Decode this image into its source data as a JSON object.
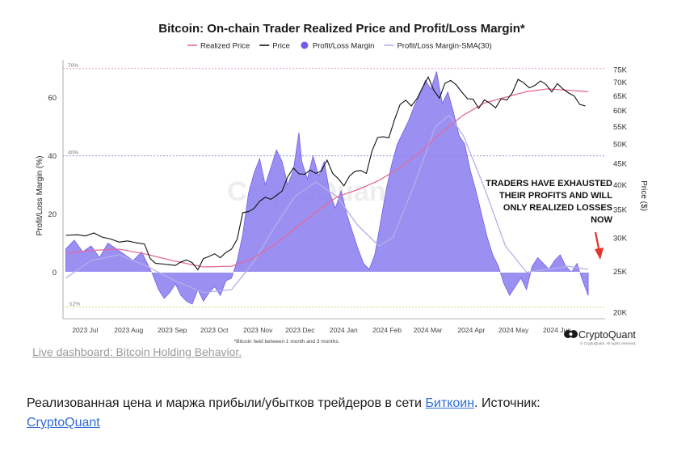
{
  "chart_data": {
    "type": "line",
    "title": "Bitcoin: On-chain Trader Realized Price and Profit/Loss Margin*",
    "ylabel_left": "Profit/Loss Margin (%)",
    "ylabel_right": "Price ($)",
    "ylim_left": [
      -16,
      73
    ],
    "ylim_right_log": [
      20000,
      75000
    ],
    "left_ticks": [
      "0",
      "20",
      "40",
      "60"
    ],
    "left_tick_values": [
      0,
      20,
      40,
      60
    ],
    "right_ticks": [
      "20K",
      "25K",
      "30K",
      "35K",
      "40K",
      "45K",
      "50K",
      "55K",
      "60K",
      "65K",
      "70K",
      "75K"
    ],
    "right_tick_values": [
      20000,
      25000,
      30000,
      35000,
      40000,
      45000,
      50000,
      55000,
      60000,
      65000,
      70000,
      75000
    ],
    "x_ticks": [
      "2023 Jul",
      "2023 Aug",
      "2023 Sep",
      "2023 Oct",
      "2023 Nov",
      "2023 Dec",
      "2024 Jan",
      "2024 Feb",
      "2024 Mar",
      "2024 Apr",
      "2024 May",
      "2024 Jun"
    ],
    "x_tick_days": [
      0,
      31,
      62,
      92,
      123,
      153,
      184,
      215,
      244,
      275,
      305,
      336
    ],
    "x_range_days": [
      -10,
      376
    ],
    "reference_lines": [
      {
        "label": "70%",
        "value": 70,
        "color": "#d98ac9"
      },
      {
        "label": "40%",
        "value": 40,
        "color": "#8a7ce0"
      },
      {
        "label": "-12%",
        "value": -12,
        "color": "#d9d27a"
      }
    ],
    "legend": [
      {
        "name": "Realized Price",
        "color": "#e36a9a",
        "style": "line"
      },
      {
        "name": "Price",
        "color": "#111111",
        "style": "line"
      },
      {
        "name": "Profit/Loss Margin",
        "color": "#6f5fe8",
        "style": "dot"
      },
      {
        "name": "Profit/Loss Margin-SMA(30)",
        "color": "#b7aee8",
        "style": "line"
      }
    ],
    "series": [
      {
        "name": "Profit/Loss Margin",
        "axis": "left",
        "color": "#6f5fe8",
        "points": [
          [
            -8,
            8
          ],
          [
            -2,
            11
          ],
          [
            4,
            7
          ],
          [
            10,
            9
          ],
          [
            16,
            5
          ],
          [
            22,
            10
          ],
          [
            28,
            8
          ],
          [
            34,
            6
          ],
          [
            40,
            4
          ],
          [
            46,
            7
          ],
          [
            50,
            3
          ],
          [
            54,
            -1
          ],
          [
            58,
            -6
          ],
          [
            62,
            -9
          ],
          [
            66,
            -7
          ],
          [
            70,
            -4
          ],
          [
            74,
            -8
          ],
          [
            78,
            -10
          ],
          [
            82,
            -11
          ],
          [
            86,
            -6
          ],
          [
            90,
            -10
          ],
          [
            94,
            -7
          ],
          [
            98,
            -5
          ],
          [
            102,
            -8
          ],
          [
            106,
            -3
          ],
          [
            110,
            -2
          ],
          [
            114,
            4
          ],
          [
            118,
            13
          ],
          [
            122,
            27
          ],
          [
            126,
            34
          ],
          [
            130,
            39
          ],
          [
            134,
            30
          ],
          [
            138,
            36
          ],
          [
            142,
            42
          ],
          [
            146,
            38
          ],
          [
            150,
            30
          ],
          [
            154,
            35
          ],
          [
            158,
            48
          ],
          [
            160,
            38
          ],
          [
            164,
            32
          ],
          [
            168,
            40
          ],
          [
            172,
            33
          ],
          [
            176,
            38
          ],
          [
            180,
            27
          ],
          [
            184,
            22
          ],
          [
            188,
            28
          ],
          [
            192,
            20
          ],
          [
            196,
            14
          ],
          [
            200,
            8
          ],
          [
            204,
            3
          ],
          [
            208,
            1
          ],
          [
            212,
            6
          ],
          [
            216,
            17
          ],
          [
            220,
            28
          ],
          [
            224,
            37
          ],
          [
            228,
            44
          ],
          [
            232,
            48
          ],
          [
            236,
            52
          ],
          [
            240,
            57
          ],
          [
            244,
            61
          ],
          [
            248,
            66
          ],
          [
            252,
            63
          ],
          [
            256,
            69
          ],
          [
            260,
            58
          ],
          [
            264,
            62
          ],
          [
            268,
            55
          ],
          [
            272,
            47
          ],
          [
            276,
            44
          ],
          [
            280,
            35
          ],
          [
            284,
            28
          ],
          [
            288,
            20
          ],
          [
            292,
            12
          ],
          [
            296,
            6
          ],
          [
            300,
            2
          ],
          [
            304,
            -4
          ],
          [
            308,
            -8
          ],
          [
            312,
            -5
          ],
          [
            316,
            -2
          ],
          [
            320,
            -6
          ],
          [
            324,
            2
          ],
          [
            328,
            5
          ],
          [
            332,
            3
          ],
          [
            336,
            1
          ],
          [
            340,
            4
          ],
          [
            344,
            6
          ],
          [
            348,
            2
          ],
          [
            352,
            0
          ],
          [
            356,
            3
          ],
          [
            360,
            -3
          ],
          [
            364,
            -8
          ]
        ]
      },
      {
        "name": "Profit/Loss Margin-SMA(30)",
        "axis": "left",
        "color": "#b7aee8",
        "points": [
          [
            -8,
            -2
          ],
          [
            10,
            4
          ],
          [
            30,
            6
          ],
          [
            50,
            2
          ],
          [
            70,
            -3
          ],
          [
            90,
            -7
          ],
          [
            110,
            -6
          ],
          [
            125,
            3
          ],
          [
            140,
            15
          ],
          [
            155,
            26
          ],
          [
            170,
            31
          ],
          [
            185,
            26
          ],
          [
            200,
            16
          ],
          [
            215,
            9
          ],
          [
            225,
            12
          ],
          [
            240,
            30
          ],
          [
            255,
            50
          ],
          [
            265,
            54
          ],
          [
            275,
            47
          ],
          [
            290,
            29
          ],
          [
            305,
            9
          ],
          [
            320,
            0
          ],
          [
            335,
            1
          ],
          [
            350,
            2
          ],
          [
            364,
            1
          ]
        ]
      },
      {
        "name": "Realized Price",
        "axis": "right",
        "color": "#e36a9a",
        "points": [
          [
            -8,
            27600
          ],
          [
            10,
            28000
          ],
          [
            30,
            28200
          ],
          [
            50,
            27400
          ],
          [
            70,
            26400
          ],
          [
            90,
            25600
          ],
          [
            110,
            25700
          ],
          [
            125,
            26800
          ],
          [
            140,
            28800
          ],
          [
            155,
            31500
          ],
          [
            170,
            34500
          ],
          [
            185,
            37500
          ],
          [
            200,
            39000
          ],
          [
            215,
            41000
          ],
          [
            230,
            44000
          ],
          [
            245,
            48000
          ],
          [
            260,
            53500
          ],
          [
            275,
            58500
          ],
          [
            290,
            62500
          ],
          [
            305,
            64500
          ],
          [
            320,
            66500
          ],
          [
            335,
            67500
          ],
          [
            350,
            67000
          ],
          [
            364,
            66500
          ]
        ]
      },
      {
        "name": "Price",
        "axis": "right",
        "color": "#111111",
        "points": [
          [
            -8,
            30400
          ],
          [
            0,
            30500
          ],
          [
            6,
            30300
          ],
          [
            12,
            30800
          ],
          [
            18,
            30100
          ],
          [
            24,
            29800
          ],
          [
            30,
            29300
          ],
          [
            36,
            29500
          ],
          [
            42,
            29200
          ],
          [
            48,
            29000
          ],
          [
            52,
            26800
          ],
          [
            56,
            26100
          ],
          [
            62,
            26000
          ],
          [
            66,
            25900
          ],
          [
            70,
            25800
          ],
          [
            74,
            26300
          ],
          [
            78,
            26600
          ],
          [
            82,
            26200
          ],
          [
            86,
            25200
          ],
          [
            90,
            26800
          ],
          [
            94,
            27100
          ],
          [
            98,
            27500
          ],
          [
            102,
            26900
          ],
          [
            106,
            27700
          ],
          [
            110,
            28200
          ],
          [
            114,
            29800
          ],
          [
            118,
            34400
          ],
          [
            122,
            34600
          ],
          [
            126,
            35200
          ],
          [
            130,
            36600
          ],
          [
            134,
            37400
          ],
          [
            138,
            37000
          ],
          [
            142,
            37800
          ],
          [
            146,
            38700
          ],
          [
            150,
            41800
          ],
          [
            154,
            43900
          ],
          [
            158,
            42500
          ],
          [
            162,
            42400
          ],
          [
            166,
            43400
          ],
          [
            170,
            42600
          ],
          [
            174,
            43200
          ],
          [
            178,
            45800
          ],
          [
            182,
            42600
          ],
          [
            186,
            41400
          ],
          [
            190,
            39800
          ],
          [
            194,
            42000
          ],
          [
            198,
            43100
          ],
          [
            202,
            43300
          ],
          [
            206,
            42600
          ],
          [
            210,
            48100
          ],
          [
            214,
            51800
          ],
          [
            218,
            52000
          ],
          [
            222,
            51700
          ],
          [
            226,
            57000
          ],
          [
            230,
            62000
          ],
          [
            234,
            63500
          ],
          [
            238,
            61500
          ],
          [
            242,
            64000
          ],
          [
            246,
            68000
          ],
          [
            250,
            72000
          ],
          [
            254,
            67000
          ],
          [
            258,
            64200
          ],
          [
            262,
            69600
          ],
          [
            266,
            70700
          ],
          [
            270,
            69000
          ],
          [
            274,
            66300
          ],
          [
            278,
            64000
          ],
          [
            282,
            63800
          ],
          [
            286,
            60700
          ],
          [
            290,
            63600
          ],
          [
            294,
            62400
          ],
          [
            298,
            60900
          ],
          [
            302,
            64000
          ],
          [
            306,
            63500
          ],
          [
            310,
            66200
          ],
          [
            314,
            71100
          ],
          [
            318,
            69800
          ],
          [
            322,
            67900
          ],
          [
            326,
            68800
          ],
          [
            330,
            70500
          ],
          [
            334,
            69100
          ],
          [
            338,
            66400
          ],
          [
            342,
            69500
          ],
          [
            346,
            67500
          ],
          [
            350,
            66000
          ],
          [
            354,
            64900
          ],
          [
            358,
            62000
          ],
          [
            362,
            61500
          ]
        ]
      }
    ],
    "annotations": [
      "TRADERS HAVE EXHAUSTED",
      "THEIR PROFITS AND WILL",
      "ONLY REALIZED LOSSES",
      "NOW"
    ],
    "footnote": "*Bitcoin held between 1 month and 3 months.",
    "watermark": "CryptoQuant",
    "brand": "CryptoQuant",
    "brand_sub": "© CryptoQuant. All rights reserved.",
    "arrow_color": "#e8332a"
  },
  "live_link": "Live dashboard: Bitcoin Holding Behavior.",
  "caption": {
    "before": "Реализованная цена и маржа прибыли/убытков трейдеров в сети ",
    "link1": "Биткоин",
    "middle": ". Источник: ",
    "link2": "CryptoQuant"
  }
}
